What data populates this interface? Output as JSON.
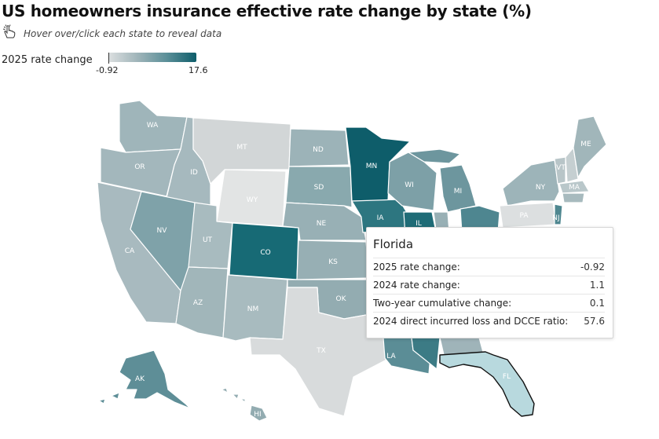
{
  "title": "US homeowners insurance effective rate change by state (%)",
  "hint": {
    "text": "Hover over/click each state to reveal data",
    "icon": "pointer-hand-icon"
  },
  "legend": {
    "label": "2025 rate change",
    "min": "-0.92",
    "max": "17.6",
    "colors": [
      "#dcdfe0",
      "#0e5d6a"
    ]
  },
  "states": [
    "WA",
    "OR",
    "CA",
    "ID",
    "NV",
    "MT",
    "WY",
    "UT",
    "AZ",
    "CO",
    "NM",
    "ND",
    "SD",
    "NE",
    "KS",
    "OK",
    "TX",
    "MN",
    "IA",
    "WI",
    "MI",
    "IL",
    "LA",
    "AK",
    "HI",
    "NY",
    "PA",
    "ME",
    "VT",
    "MA",
    "NJ",
    "FL"
  ],
  "tooltip": {
    "state": "Florida",
    "rows": [
      {
        "label": "2025 rate change:",
        "value": "-0.92"
      },
      {
        "label": "2024 rate change:",
        "value": "1.1"
      },
      {
        "label": "Two-year cumulative change:",
        "value": "0.1"
      },
      {
        "label": "2024 direct incurred loss and DCCE ratio:",
        "value": "57.6"
      }
    ]
  }
}
